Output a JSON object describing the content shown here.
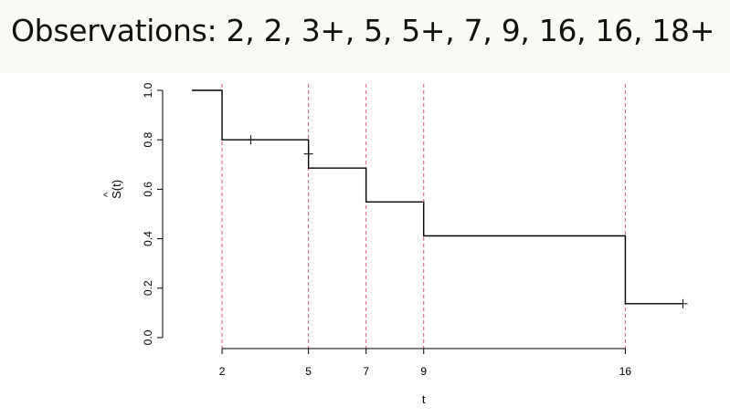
{
  "title": "Observations: 2, 2, 3+, 5, 5+, 7, 9, 16, 16, 18+",
  "chart_data": {
    "type": "line",
    "xlabel": "t",
    "ylabel_hat": "^",
    "ylabel": "S(t)",
    "x_ticks": [
      2,
      5,
      7,
      9,
      16
    ],
    "y_ticks": [
      0.0,
      0.2,
      0.4,
      0.6,
      0.8,
      1.0
    ],
    "y_tick_labels": [
      "0.0",
      "0.2",
      "0.4",
      "0.6",
      "0.8",
      "1.0"
    ],
    "xlim": [
      0,
      19
    ],
    "ylim": [
      0,
      1.0
    ],
    "grid": false,
    "step_curve": [
      {
        "x": 0,
        "y": 1.0
      },
      {
        "x": 2,
        "y": 0.8
      },
      {
        "x": 5,
        "y": 0.6857
      },
      {
        "x": 7,
        "y": 0.5486
      },
      {
        "x": 9,
        "y": 0.4114
      },
      {
        "x": 16,
        "y": 0.1371
      },
      {
        "x": 18,
        "y": 0.1371
      }
    ],
    "censored": [
      {
        "x": 3,
        "y": 0.8
      },
      {
        "x": 5,
        "y": 0.7429
      },
      {
        "x": 18,
        "y": 0.1371
      }
    ],
    "event_lines": [
      2,
      5,
      7,
      9,
      16
    ],
    "colors": {
      "curve": "#000000",
      "event_lines": "#d9607a"
    }
  }
}
